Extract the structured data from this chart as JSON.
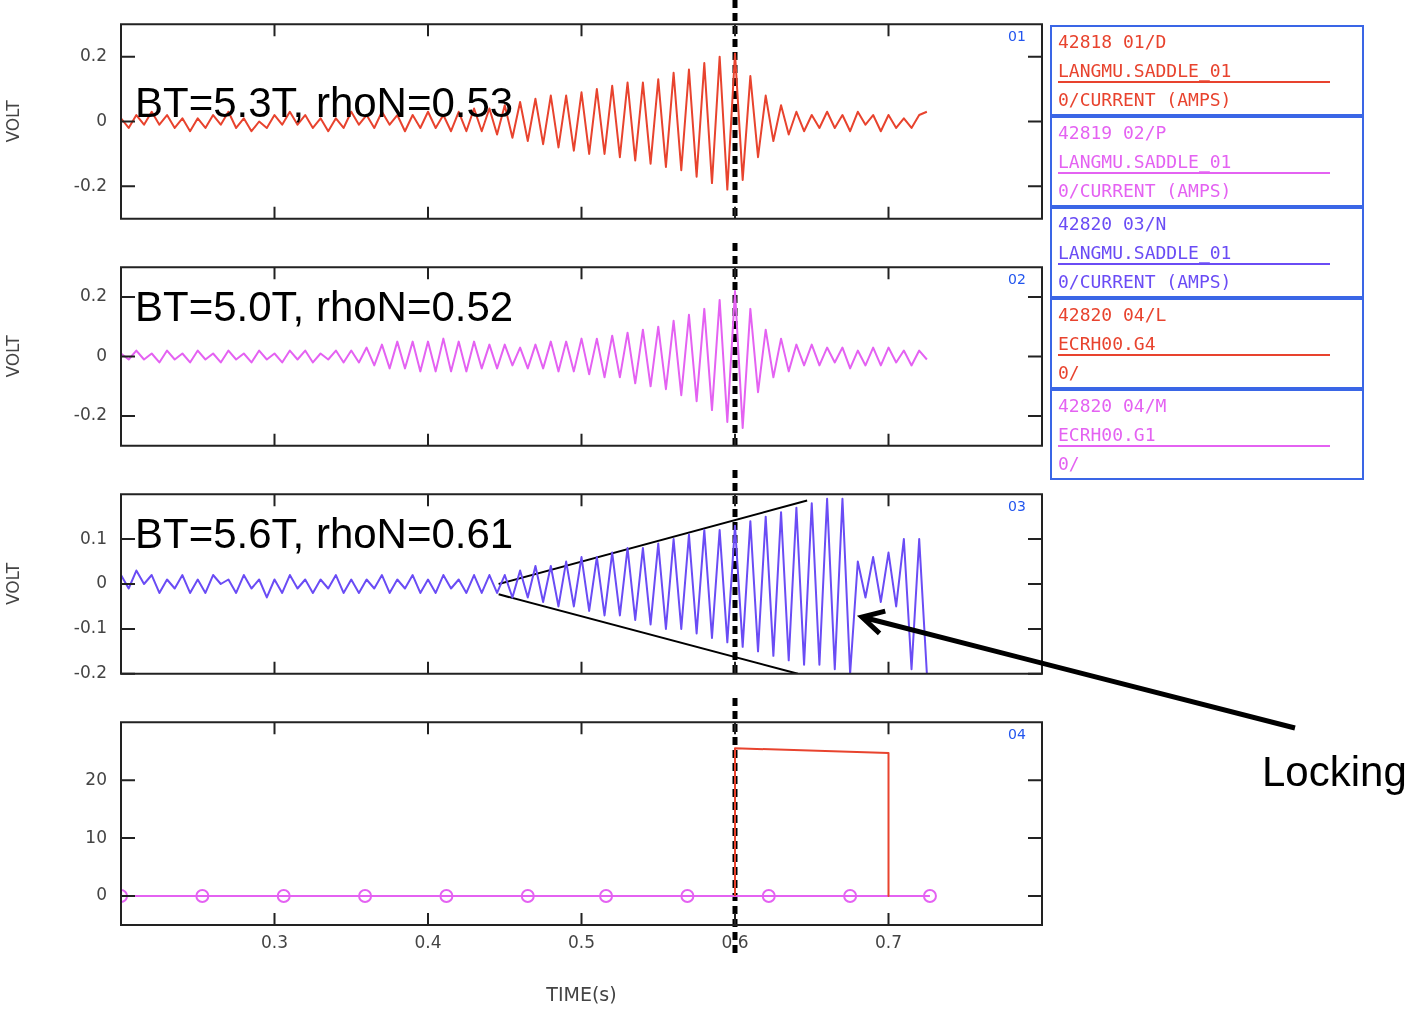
{
  "chart_data": [
    {
      "type": "line",
      "ylabel": "VOLT",
      "xlim": [
        0.2,
        0.8
      ],
      "xticks": [
        0.3,
        0.4,
        0.5,
        0.6,
        0.7
      ],
      "ylim": [
        -0.3,
        0.3
      ],
      "yticks": [
        -0.2,
        0,
        0.2
      ],
      "tick_labels": "y",
      "legend": "right",
      "x": [
        0.2,
        0.205,
        0.21,
        0.215,
        0.22,
        0.225,
        0.23,
        0.235,
        0.24,
        0.245,
        0.25,
        0.255,
        0.26,
        0.265,
        0.27,
        0.275,
        0.28,
        0.285,
        0.29,
        0.295,
        0.3,
        0.305,
        0.31,
        0.315,
        0.32,
        0.325,
        0.33,
        0.335,
        0.34,
        0.345,
        0.35,
        0.355,
        0.36,
        0.365,
        0.37,
        0.375,
        0.38,
        0.385,
        0.39,
        0.395,
        0.4,
        0.405,
        0.41,
        0.415,
        0.42,
        0.425,
        0.43,
        0.435,
        0.44,
        0.445,
        0.45,
        0.455,
        0.46,
        0.465,
        0.47,
        0.475,
        0.48,
        0.485,
        0.49,
        0.495,
        0.5,
        0.505,
        0.51,
        0.515,
        0.52,
        0.525,
        0.53,
        0.535,
        0.54,
        0.545,
        0.55,
        0.555,
        0.56,
        0.565,
        0.57,
        0.575,
        0.58,
        0.585,
        0.59,
        0.595,
        0.6,
        0.605,
        0.61,
        0.615,
        0.62,
        0.625,
        0.63,
        0.635,
        0.64,
        0.645,
        0.65,
        0.655,
        0.66,
        0.665,
        0.67,
        0.675,
        0.68,
        0.685,
        0.69,
        0.695,
        0.7,
        0.705,
        0.71,
        0.715,
        0.72,
        0.725
      ],
      "ref_lines": [
        {
          "axis": "x",
          "value": 0.6,
          "color": "#000000",
          "line_style": "dotted"
        }
      ],
      "annotations": [
        "01",
        "BT=5.3T, rhoN=0.53"
      ],
      "series": [
        {
          "name": "42818 01/D\nLANGMU.SADDLE_01\n0/CURRENT (AMPS)",
          "color": "#e8432e",
          "values": [
            0.01,
            -0.02,
            0.02,
            -0.01,
            0.03,
            -0.01,
            0.02,
            -0.02,
            0.01,
            -0.03,
            0.01,
            -0.02,
            0.02,
            -0.01,
            0.03,
            -0.02,
            0.01,
            -0.03,
            0,
            -0.02,
            0.02,
            -0.01,
            0.03,
            -0.01,
            0.02,
            -0.02,
            0.01,
            -0.03,
            0.01,
            -0.02,
            0.03,
            -0.01,
            0.02,
            -0.02,
            0.03,
            -0.01,
            0.02,
            -0.03,
            0.02,
            -0.02,
            0.03,
            -0.02,
            0.02,
            -0.03,
            0.03,
            -0.03,
            0.04,
            -0.03,
            0.04,
            -0.04,
            0.05,
            -0.05,
            0.06,
            -0.06,
            0.07,
            -0.07,
            0.08,
            -0.08,
            0.08,
            -0.09,
            0.09,
            -0.1,
            0.1,
            -0.1,
            0.11,
            -0.11,
            0.12,
            -0.12,
            0.12,
            -0.13,
            0.13,
            -0.14,
            0.15,
            -0.15,
            0.16,
            -0.17,
            0.18,
            -0.19,
            0.2,
            -0.21,
            0.21,
            -0.18,
            0.14,
            -0.11,
            0.08,
            -0.06,
            0.05,
            -0.04,
            0.03,
            -0.03,
            0.02,
            -0.02,
            0.03,
            -0.02,
            0.02,
            -0.03,
            0.03,
            -0.01,
            0.02,
            -0.03,
            0.02,
            -0.02,
            0.01,
            -0.02,
            0.02,
            0.03
          ]
        }
      ]
    },
    {
      "type": "line",
      "ylabel": "VOLT",
      "xlim": [
        0.2,
        0.8
      ],
      "xticks": [
        0.3,
        0.4,
        0.5,
        0.6,
        0.7
      ],
      "ylim": [
        -0.3,
        0.3
      ],
      "yticks": [
        -0.2,
        0,
        0.2
      ],
      "tick_labels": "y",
      "legend": "right",
      "x": [
        0.2,
        0.205,
        0.21,
        0.215,
        0.22,
        0.225,
        0.23,
        0.235,
        0.24,
        0.245,
        0.25,
        0.255,
        0.26,
        0.265,
        0.27,
        0.275,
        0.28,
        0.285,
        0.29,
        0.295,
        0.3,
        0.305,
        0.31,
        0.315,
        0.32,
        0.325,
        0.33,
        0.335,
        0.34,
        0.345,
        0.35,
        0.355,
        0.36,
        0.365,
        0.37,
        0.375,
        0.38,
        0.385,
        0.39,
        0.395,
        0.4,
        0.405,
        0.41,
        0.415,
        0.42,
        0.425,
        0.43,
        0.435,
        0.44,
        0.445,
        0.45,
        0.455,
        0.46,
        0.465,
        0.47,
        0.475,
        0.48,
        0.485,
        0.49,
        0.495,
        0.5,
        0.505,
        0.51,
        0.515,
        0.52,
        0.525,
        0.53,
        0.535,
        0.54,
        0.545,
        0.55,
        0.555,
        0.56,
        0.565,
        0.57,
        0.575,
        0.58,
        0.585,
        0.59,
        0.595,
        0.6,
        0.605,
        0.61,
        0.615,
        0.62,
        0.625,
        0.63,
        0.635,
        0.64,
        0.645,
        0.65,
        0.655,
        0.66,
        0.665,
        0.67,
        0.675,
        0.68,
        0.685,
        0.69,
        0.695,
        0.7,
        0.705,
        0.71,
        0.715,
        0.72,
        0.725
      ],
      "ref_lines": [
        {
          "axis": "x",
          "value": 0.6,
          "color": "#000000",
          "line_style": "dotted"
        }
      ],
      "annotations": [
        "02",
        "BT=5.0T, rhoN=0.52"
      ],
      "series": [
        {
          "name": "42819 02/P\nLANGMU.SADDLE_01\n0/CURRENT (AMPS)",
          "color": "#e462f2",
          "values": [
            0.01,
            -0.01,
            0.02,
            -0.01,
            0.01,
            -0.02,
            0.02,
            -0.01,
            0.01,
            -0.02,
            0.02,
            -0.01,
            0.01,
            -0.02,
            0.02,
            -0.01,
            0.01,
            -0.02,
            0.02,
            -0.01,
            0.01,
            -0.02,
            0.02,
            -0.01,
            0.02,
            -0.02,
            0.01,
            -0.01,
            0.02,
            -0.02,
            0.02,
            -0.02,
            0.03,
            -0.03,
            0.04,
            -0.04,
            0.05,
            -0.04,
            0.05,
            -0.05,
            0.05,
            -0.05,
            0.06,
            -0.05,
            0.05,
            -0.05,
            0.05,
            -0.04,
            0.04,
            -0.04,
            0.04,
            -0.03,
            0.03,
            -0.04,
            0.04,
            -0.04,
            0.05,
            -0.05,
            0.05,
            -0.05,
            0.06,
            -0.06,
            0.06,
            -0.07,
            0.07,
            -0.07,
            0.08,
            -0.09,
            0.09,
            -0.1,
            0.1,
            -0.11,
            0.12,
            -0.13,
            0.14,
            -0.15,
            0.16,
            -0.18,
            0.19,
            -0.22,
            0.22,
            -0.24,
            0.16,
            -0.12,
            0.09,
            -0.07,
            0.06,
            -0.05,
            0.04,
            -0.03,
            0.04,
            -0.03,
            0.03,
            -0.02,
            0.03,
            -0.04,
            0.02,
            -0.03,
            0.03,
            -0.03,
            0.03,
            -0.02,
            0.02,
            -0.03,
            0.02,
            -0.01
          ]
        }
      ]
    },
    {
      "type": "line",
      "ylabel": "VOLT",
      "xlim": [
        0.2,
        0.8
      ],
      "xticks": [
        0.3,
        0.4,
        0.5,
        0.6,
        0.7
      ],
      "ylim": [
        -0.2,
        0.2
      ],
      "yticks": [
        -0.2,
        -0.1,
        0,
        0.1
      ],
      "tick_labels": "y",
      "legend": "right",
      "x": [
        0.2,
        0.205,
        0.21,
        0.215,
        0.22,
        0.225,
        0.23,
        0.235,
        0.24,
        0.245,
        0.25,
        0.255,
        0.26,
        0.265,
        0.27,
        0.275,
        0.28,
        0.285,
        0.29,
        0.295,
        0.3,
        0.305,
        0.31,
        0.315,
        0.32,
        0.325,
        0.33,
        0.335,
        0.34,
        0.345,
        0.35,
        0.355,
        0.36,
        0.365,
        0.37,
        0.375,
        0.38,
        0.385,
        0.39,
        0.395,
        0.4,
        0.405,
        0.41,
        0.415,
        0.42,
        0.425,
        0.43,
        0.435,
        0.44,
        0.445,
        0.45,
        0.455,
        0.46,
        0.465,
        0.47,
        0.475,
        0.48,
        0.485,
        0.49,
        0.495,
        0.5,
        0.505,
        0.51,
        0.515,
        0.52,
        0.525,
        0.53,
        0.535,
        0.54,
        0.545,
        0.55,
        0.555,
        0.56,
        0.565,
        0.57,
        0.575,
        0.58,
        0.585,
        0.59,
        0.595,
        0.6,
        0.605,
        0.61,
        0.615,
        0.62,
        0.625,
        0.63,
        0.635,
        0.64,
        0.645,
        0.65,
        0.655,
        0.66,
        0.665,
        0.67,
        0.675,
        0.68,
        0.685,
        0.69,
        0.695,
        0.7,
        0.705,
        0.71,
        0.715,
        0.72,
        0.725
      ],
      "ref_lines": [
        {
          "axis": "x",
          "value": 0.6,
          "color": "#000000",
          "line_style": "dotted"
        }
      ],
      "annotations": [
        "03",
        "BT=5.6T, rhoN=0.61",
        "Locking"
      ],
      "series": [
        {
          "name": "42820 03/N\nLANGMU.SADDLE_01\n0/CURRENT (AMPS)",
          "color": "#6a4cf5",
          "values": [
            0.02,
            -0.01,
            0.03,
            0,
            0.02,
            -0.02,
            0.01,
            -0.01,
            0.02,
            -0.02,
            0.01,
            -0.02,
            0.02,
            0,
            0.01,
            -0.02,
            0.02,
            -0.01,
            0.01,
            -0.03,
            0.01,
            -0.02,
            0.02,
            -0.01,
            0.01,
            -0.02,
            0.01,
            -0.01,
            0.02,
            -0.02,
            0.01,
            -0.02,
            0.01,
            -0.01,
            0.02,
            -0.02,
            0.01,
            -0.01,
            0.02,
            -0.02,
            0.01,
            -0.02,
            0.02,
            -0.01,
            0.01,
            -0.02,
            0.02,
            -0.02,
            0.02,
            -0.02,
            0.02,
            -0.03,
            0.03,
            -0.03,
            0.04,
            -0.04,
            0.04,
            -0.05,
            0.05,
            -0.05,
            0.06,
            -0.06,
            0.06,
            -0.07,
            0.07,
            -0.07,
            0.08,
            -0.08,
            0.08,
            -0.09,
            0.09,
            -0.1,
            0.1,
            -0.1,
            0.11,
            -0.11,
            0.12,
            -0.12,
            0.12,
            -0.13,
            0.13,
            -0.14,
            0.14,
            -0.15,
            0.15,
            -0.16,
            0.16,
            -0.17,
            0.17,
            -0.18,
            0.18,
            -0.18,
            0.19,
            -0.19,
            0.19,
            -0.2,
            0.05,
            -0.03,
            0.06,
            -0.04,
            0.07,
            -0.05,
            0.1,
            -0.19,
            0.1,
            -0.2
          ]
        },
        {
          "color": "#000000",
          "x": [
            0.446,
            0.647
          ],
          "values": [
            0,
            0.186
          ]
        },
        {
          "color": "#000000",
          "x": [
            0.446,
            0.641
          ],
          "values": [
            -0.023,
            -0.2
          ]
        }
      ]
    },
    {
      "type": "line",
      "xlabel": "TIME(s)",
      "xlim": [
        0.2,
        0.8
      ],
      "xticks": [
        0.3,
        0.4,
        0.5,
        0.6,
        0.7
      ],
      "ylim": [
        -5,
        30
      ],
      "yticks": [
        0,
        10,
        20
      ],
      "legend": "right",
      "ref_lines": [
        {
          "axis": "x",
          "value": 0.6,
          "color": "#000000",
          "line_style": "dotted"
        }
      ],
      "annotations": [
        "04"
      ],
      "series": [
        {
          "name": "42820 04/L\nECRH00.G4\n0/",
          "color": "#e8432e",
          "x": [
            0.6,
            0.6,
            0.7,
            0.7
          ],
          "values": [
            0,
            25.5,
            24.7,
            0
          ]
        },
        {
          "name": "42820 04/M\nECRH00.G1\n0/",
          "color": "#e462f2",
          "marker": "circle",
          "x": [
            0.2,
            0.253,
            0.306,
            0.359,
            0.412,
            0.465,
            0.516,
            0.569,
            0.622,
            0.675,
            0.727
          ],
          "values": [
            0,
            0,
            0,
            0,
            0,
            0,
            0,
            0,
            0,
            0,
            0
          ]
        }
      ]
    }
  ]
}
